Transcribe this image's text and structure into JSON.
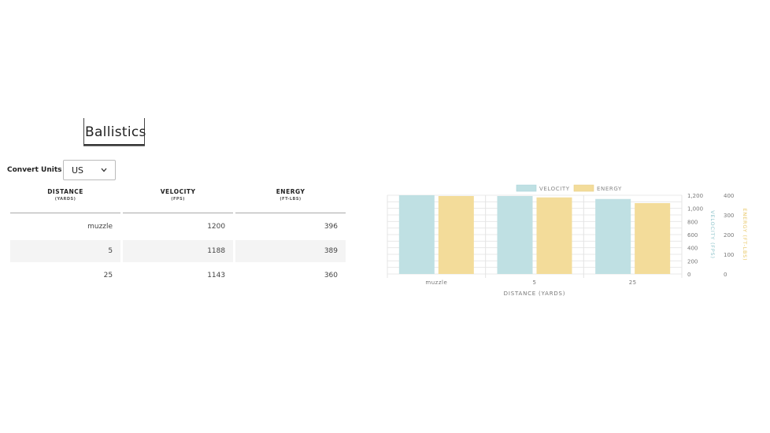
{
  "page": {
    "title": "Ballistics"
  },
  "units": {
    "label": "Convert Units",
    "selected": "US"
  },
  "table": {
    "headers": [
      {
        "title": "DISTANCE",
        "unit": "(YARDS)"
      },
      {
        "title": "VELOCITY",
        "unit": "(FPS)"
      },
      {
        "title": "ENERGY",
        "unit": "(FT-LBS)"
      }
    ],
    "rows": [
      {
        "distance": "muzzle",
        "velocity": "1200",
        "energy": "396"
      },
      {
        "distance": "5",
        "velocity": "1188",
        "energy": "389"
      },
      {
        "distance": "25",
        "velocity": "1143",
        "energy": "360"
      }
    ]
  },
  "colors": {
    "velocity": "#bfe0e3",
    "energy": "#f3dc9a",
    "velocity_text": "#8fc4cb",
    "energy_text": "#e8c766"
  },
  "chart_data": {
    "type": "bar",
    "categories": [
      "muzzle",
      "5",
      "25"
    ],
    "series": [
      {
        "name": "VELOCITY",
        "values": [
          1200,
          1188,
          1143
        ],
        "axis": "left"
      },
      {
        "name": "ENERGY",
        "values": [
          396,
          389,
          360
        ],
        "axis": "right"
      }
    ],
    "xlabel": "DISTANCE (YARDS)",
    "ylabel_left": "VELOCITY (FPS)",
    "ylabel_right": "ENERGY (FT-LBS)",
    "ylim_left": [
      0,
      1200
    ],
    "ylim_right": [
      0,
      400
    ],
    "yticks_left": [
      "0",
      "200",
      "400",
      "600",
      "800",
      "1,000",
      "1,200"
    ],
    "yticks_right": [
      "0",
      "100",
      "200",
      "300",
      "400"
    ],
    "legend": "top-center",
    "grid": true
  }
}
